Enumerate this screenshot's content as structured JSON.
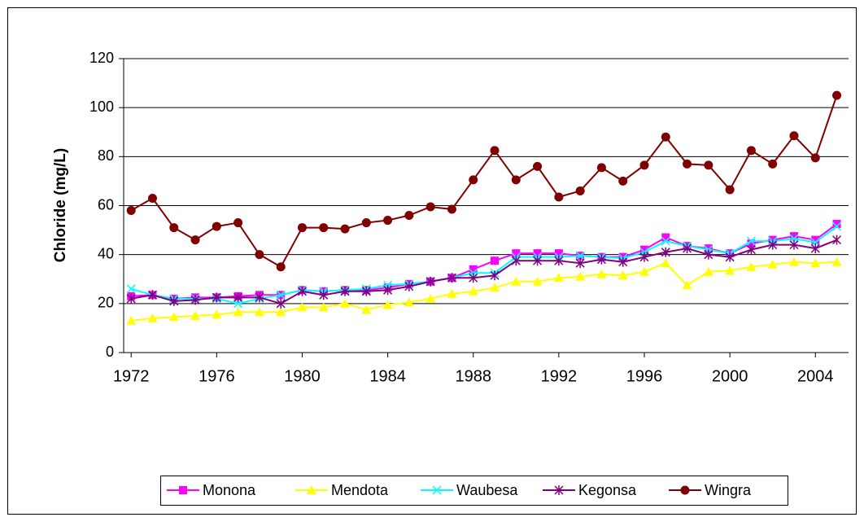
{
  "chart_data": {
    "type": "line",
    "y_label": "Chloride (mg/L)",
    "x": [
      1972,
      1973,
      1974,
      1975,
      1976,
      1977,
      1978,
      1979,
      1980,
      1981,
      1982,
      1983,
      1984,
      1985,
      1986,
      1987,
      1988,
      1989,
      1990,
      1991,
      1992,
      1993,
      1994,
      1995,
      1996,
      1997,
      1998,
      1999,
      2000,
      2001,
      2002,
      2003,
      2004,
      2005
    ],
    "series": [
      {
        "name": "Monona",
        "color": "#ff00ff",
        "marker": "square",
        "values": [
          23,
          23.5,
          22,
          22.5,
          22.5,
          23,
          23.5,
          23.5,
          25.5,
          25,
          25.5,
          25.5,
          26.5,
          28,
          29,
          30.5,
          34,
          37.5,
          40.5,
          40.5,
          40.5,
          39.5,
          39,
          39,
          42,
          47,
          43.5,
          42.5,
          40.5,
          44.5,
          46,
          47.5,
          46,
          52.5
        ]
      },
      {
        "name": "Mendota",
        "color": "#ffff00",
        "marker": "triangle",
        "values": [
          13,
          14,
          14.5,
          15,
          15.5,
          16.5,
          16.5,
          16.5,
          18.5,
          18.5,
          20,
          17.5,
          19.5,
          20.5,
          22,
          24,
          25,
          26.5,
          29,
          29,
          30.5,
          31,
          32,
          31.5,
          33,
          36.5,
          27.5,
          33,
          33.5,
          35,
          36,
          37,
          36.5,
          37
        ]
      },
      {
        "name": "Waubesa",
        "color": "#00ffff",
        "marker": "x",
        "values": [
          26,
          23.5,
          22,
          22,
          22,
          20,
          22,
          23.5,
          25.5,
          25,
          25.5,
          26,
          27.5,
          28,
          29,
          30.5,
          32.5,
          32.5,
          39,
          39,
          39,
          39.5,
          39,
          38.5,
          41,
          45.5,
          43.5,
          42,
          40.5,
          45.5,
          45.5,
          46.5,
          45,
          51.5
        ]
      },
      {
        "name": "Kegonsa",
        "color": "#800080",
        "marker": "star",
        "values": [
          22,
          23.5,
          21,
          21.5,
          22.5,
          22.5,
          22.5,
          20,
          25,
          23.5,
          25,
          25,
          25.5,
          27,
          29,
          30.5,
          30.5,
          31.5,
          37.5,
          37.5,
          37.5,
          36.5,
          38,
          37,
          39,
          41,
          42.5,
          40,
          39,
          42,
          44,
          44,
          42.5,
          46
        ]
      },
      {
        "name": "Wingra",
        "color": "#800000",
        "marker": "circle",
        "values": [
          58,
          63,
          51,
          46,
          51.5,
          53,
          40,
          35,
          51,
          51,
          50.5,
          53,
          54,
          56,
          59.5,
          58.5,
          70.5,
          82.5,
          70.5,
          76,
          63.5,
          66,
          75.5,
          70,
          76.5,
          88,
          77,
          76.5,
          66.5,
          82.5,
          77,
          88.5,
          79.5,
          105
        ]
      }
    ],
    "xlim": [
      1971.65,
      2005.55
    ],
    "xticks": [
      1972,
      1976,
      1980,
      1984,
      1988,
      1992,
      1996,
      2000,
      2004
    ],
    "ylim": [
      0,
      120
    ],
    "yticks": [
      0,
      20,
      40,
      60,
      80,
      100,
      120
    ],
    "grid": true,
    "legend": "bottom"
  }
}
